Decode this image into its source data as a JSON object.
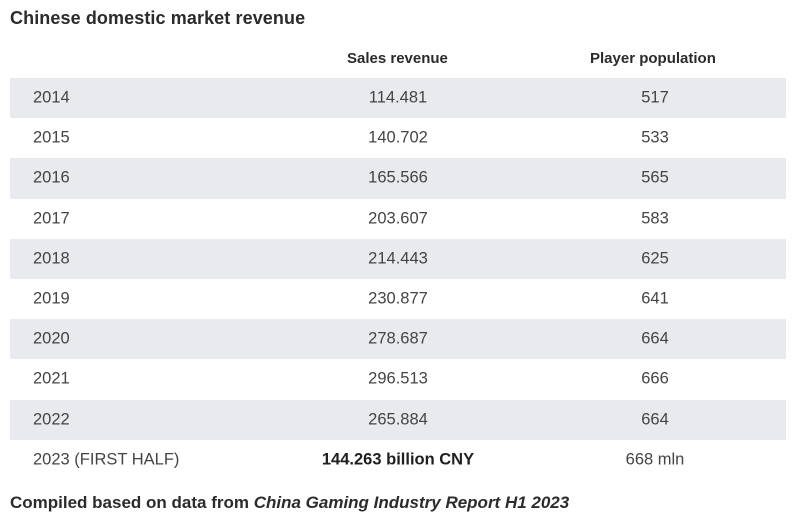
{
  "chart_data": {
    "type": "table",
    "title": "Chinese domestic market revenue",
    "columns": [
      "",
      "Sales revenue",
      "Player population"
    ],
    "rows": [
      {
        "year": "2014",
        "revenue": "114.481",
        "population": "517"
      },
      {
        "year": "2015",
        "revenue": "140.702",
        "population": "533"
      },
      {
        "year": "2016",
        "revenue": "165.566",
        "population": "565"
      },
      {
        "year": "2017",
        "revenue": "203.607",
        "population": "583"
      },
      {
        "year": "2018",
        "revenue": "214.443",
        "population": "625"
      },
      {
        "year": "2019",
        "revenue": "230.877",
        "population": "641"
      },
      {
        "year": "2020",
        "revenue": "278.687",
        "population": "664"
      },
      {
        "year": "2021",
        "revenue": "296.513",
        "population": "666"
      },
      {
        "year": "2022",
        "revenue": "265.884",
        "population": "664"
      },
      {
        "year": "2023 (FIRST HALF)",
        "revenue": "144.263 billion CNY",
        "population": "668 mln"
      }
    ]
  },
  "footer": {
    "prefix": "Compiled based on data from ",
    "source": "China Gaming Industry Report H1 2023"
  },
  "colors": {
    "shaded_row": "#e8eaee",
    "text": "#444444",
    "heading": "#2b2b2b"
  }
}
